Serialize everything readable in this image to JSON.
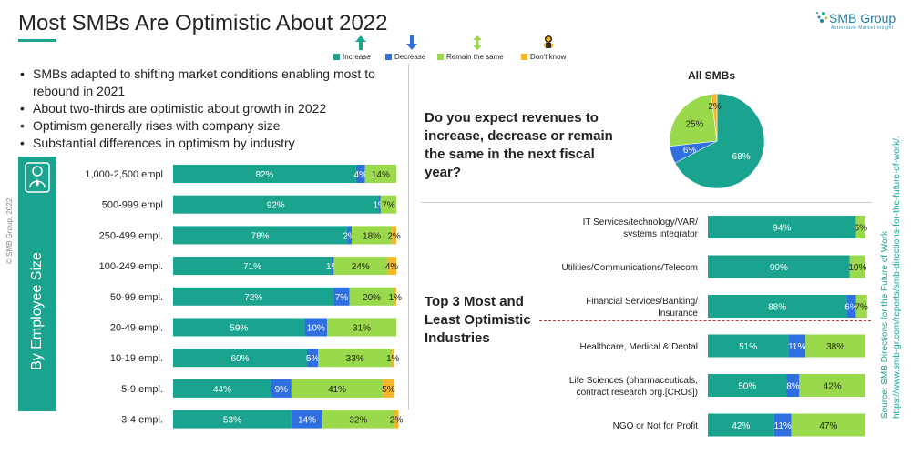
{
  "header": {
    "title": "Most SMBs Are Optimistic About 2022",
    "logo_text": "SMB Group",
    "logo_sub": "Actionable Market Insight"
  },
  "legend": [
    {
      "label": "Increase",
      "color": "#1aa48f",
      "icon": "up-arrow-icon"
    },
    {
      "label": "Decrease",
      "color": "#2f6fe0",
      "icon": "down-arrow-icon"
    },
    {
      "label": "Remain the same",
      "color": "#9ad94b",
      "icon": "up-down-arrow-icon"
    },
    {
      "label": "Don't know",
      "color": "#f6b62b",
      "icon": "confused-figure-icon"
    }
  ],
  "bullets": [
    "SMBs adapted to shifting market conditions enabling most to rebound in 2021",
    "About two-thirds are optimistic about growth in 2022",
    "Optimism generally rises with company size",
    "Substantial differences in optimism by industry"
  ],
  "sidebar": {
    "label": "By Employee Size",
    "icon": "person-icon"
  },
  "copyright": "© SMB Group, 2022",
  "question": "Do you expect revenues to increase, decrease or remain the same in the next fiscal year?",
  "top3_label": "Top 3 Most and Least Optimistic Industries",
  "source": {
    "line1": "Source: SMB Directions for the Future of Work",
    "line2": "https://www.smb-gr.com/reports/smb-directions-for-the-future-of-work/."
  },
  "colors": {
    "increase": "#1aa48f",
    "decrease": "#2f6fe0",
    "same": "#9ad94b",
    "dontknow": "#f6b62b"
  },
  "chart_data": [
    {
      "type": "bar",
      "orientation": "horizontal-stacked",
      "categories": [
        "1,000-2,500 empl",
        "500-999 empl",
        "250-499 empl.",
        "100-249 empl.",
        "50-99 empl.",
        "20-49 empl.",
        "10-19 empl.",
        "5-9 empl.",
        "3-4 empl."
      ],
      "series": [
        {
          "name": "Increase",
          "values": [
            82,
            92,
            78,
            71,
            72,
            59,
            60,
            44,
            53
          ],
          "labels": [
            "82%",
            "92%",
            "78%",
            "71%",
            "72%",
            "59%",
            "60%",
            "44%",
            "53%"
          ]
        },
        {
          "name": "Decrease",
          "values": [
            4,
            1,
            2,
            1,
            7,
            10,
            5,
            9,
            14
          ],
          "labels": [
            "4%",
            "1%",
            "2%",
            "1%",
            "7%",
            "10%",
            "5%",
            "9%",
            "14%"
          ]
        },
        {
          "name": "Remain the same",
          "values": [
            14,
            7,
            18,
            24,
            20,
            31,
            33,
            41,
            32
          ],
          "labels": [
            "14%",
            "7%",
            "18%",
            "24%",
            "20%",
            "31%",
            "33%",
            "41%",
            "32%"
          ]
        },
        {
          "name": "Don't know",
          "values": [
            0,
            0,
            2,
            4,
            1,
            0,
            1,
            5,
            2
          ],
          "labels": [
            "",
            "",
            "2%",
            "4%",
            "1%",
            "",
            "1%",
            "5%",
            "2%"
          ]
        }
      ]
    },
    {
      "type": "pie",
      "title": "All SMBs",
      "categories": [
        "Increase",
        "Decrease",
        "Remain the same",
        "Don't know"
      ],
      "values": [
        68,
        6,
        25,
        2
      ],
      "labels": [
        "68%",
        "6%",
        "25%",
        "2%"
      ]
    },
    {
      "type": "bar",
      "orientation": "horizontal-stacked",
      "categories": [
        "IT Services/technology/VAR/ systems integrator",
        "Utilities/Communications/Telecom",
        "Financial Services/Banking/ Insurance",
        "Healthcare, Medical & Dental",
        "Life Sciences (pharmaceuticals, contract research org.[CROs])",
        "NGO or Not for Profit"
      ],
      "series": [
        {
          "name": "Increase",
          "values": [
            94,
            90,
            88,
            51,
            50,
            42
          ],
          "labels": [
            "94%",
            "90%",
            "88%",
            "51%",
            "50%",
            "42%"
          ]
        },
        {
          "name": "Decrease",
          "values": [
            0,
            0,
            6,
            11,
            8,
            11
          ],
          "labels": [
            "",
            "",
            "6%",
            "11%",
            "8%",
            "11%"
          ]
        },
        {
          "name": "Remain the same",
          "values": [
            6,
            10,
            7,
            38,
            42,
            47
          ],
          "labels": [
            "6%",
            "10%",
            "7%",
            "38%",
            "42%",
            "47%"
          ]
        },
        {
          "name": "Don't know",
          "values": [
            0,
            0,
            0,
            0,
            0,
            0
          ],
          "labels": [
            "",
            "",
            "",
            "",
            "",
            ""
          ]
        }
      ]
    }
  ]
}
